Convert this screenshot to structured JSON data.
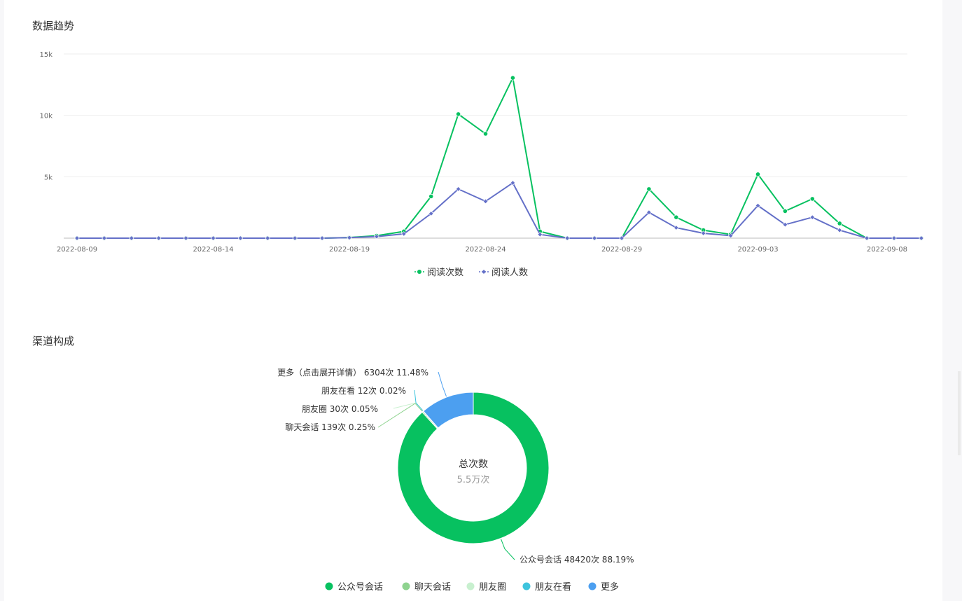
{
  "sections": {
    "trend_title": "数据趋势",
    "channel_title": "渠道构成"
  },
  "chart_data": [
    {
      "type": "line",
      "title": "数据趋势",
      "x": [
        "2022-08-09",
        "2022-08-10",
        "2022-08-11",
        "2022-08-12",
        "2022-08-13",
        "2022-08-14",
        "2022-08-15",
        "2022-08-16",
        "2022-08-17",
        "2022-08-18",
        "2022-08-19",
        "2022-08-20",
        "2022-08-21",
        "2022-08-22",
        "2022-08-23",
        "2022-08-24",
        "2022-08-25",
        "2022-08-26",
        "2022-08-27",
        "2022-08-28",
        "2022-08-29",
        "2022-08-30",
        "2022-08-31",
        "2022-09-01",
        "2022-09-02",
        "2022-09-03",
        "2022-09-04",
        "2022-09-05",
        "2022-09-06",
        "2022-09-07",
        "2022-09-08",
        "2022-09-09"
      ],
      "x_ticks": [
        "2022-08-09",
        "2022-08-14",
        "2022-08-19",
        "2022-08-24",
        "2022-08-29",
        "2022-09-03",
        "2022-09-08"
      ],
      "y_ticks": [
        "5k",
        "10k",
        "15k"
      ],
      "ylim": [
        0,
        15000
      ],
      "grid": true,
      "legend_position": "bottom",
      "series": [
        {
          "name": "阅读次数",
          "color": "#07c160",
          "marker": "circle",
          "values": [
            0,
            0,
            0,
            0,
            0,
            0,
            0,
            0,
            0,
            0,
            50,
            200,
            550,
            3400,
            10100,
            8500,
            13050,
            550,
            0,
            0,
            0,
            4000,
            1700,
            650,
            300,
            5200,
            2200,
            3200,
            1200,
            0,
            0,
            0
          ]
        },
        {
          "name": "阅读人数",
          "color": "#6470c8",
          "marker": "diamond",
          "values": [
            0,
            0,
            0,
            0,
            0,
            0,
            0,
            0,
            0,
            0,
            40,
            130,
            350,
            2000,
            4000,
            3000,
            4500,
            300,
            0,
            0,
            0,
            2100,
            850,
            400,
            200,
            2650,
            1100,
            1700,
            650,
            0,
            0,
            0
          ]
        }
      ]
    },
    {
      "type": "pie",
      "title": "渠道构成",
      "center_label": "总次数",
      "center_value": "5.5万次",
      "legend_position": "bottom",
      "slices": [
        {
          "name": "公众号会话",
          "value": 48420,
          "percent": "88.19%",
          "label": "公众号会话 48420次 88.19%",
          "color": "#07c160"
        },
        {
          "name": "聊天会话",
          "value": 139,
          "percent": "0.25%",
          "label": "聊天会话 139次 0.25%",
          "color": "#8ed38f"
        },
        {
          "name": "朋友圈",
          "value": 30,
          "percent": "0.05%",
          "label": "朋友圈 30次 0.05%",
          "color": "#c8f0cf"
        },
        {
          "name": "朋友在看",
          "value": 12,
          "percent": "0.02%",
          "label": "朋友在看 12次 0.02%",
          "color": "#3ec4dd"
        },
        {
          "name": "更多",
          "value": 6304,
          "percent": "11.48%",
          "label": "更多（点击展开详情） 6304次 11.48%",
          "color": "#4c9ff0"
        }
      ]
    }
  ]
}
